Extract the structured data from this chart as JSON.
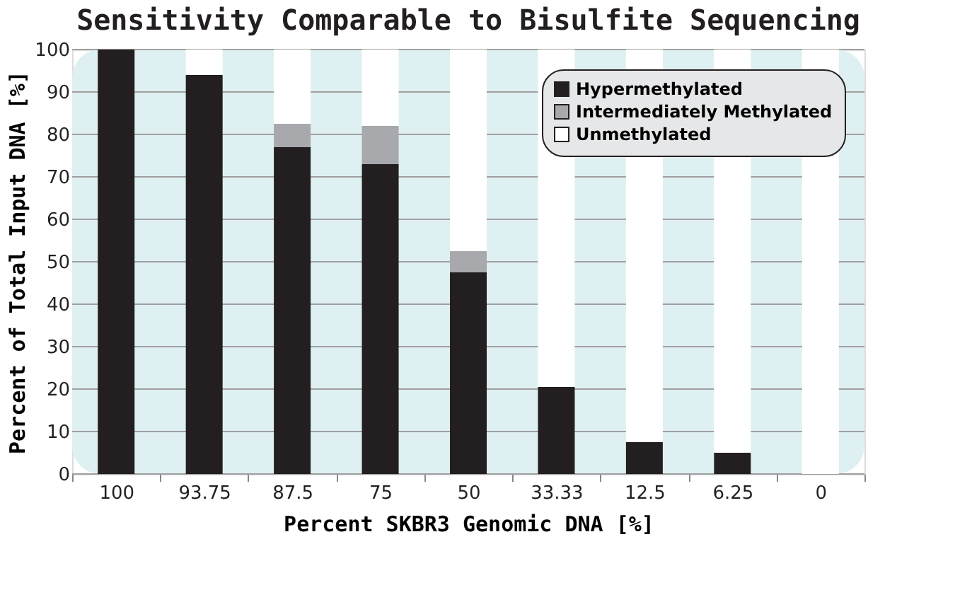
{
  "chart_data": {
    "type": "bar",
    "stacked": true,
    "title": "Sensitivity Comparable to Bisulfite Sequencing",
    "xlabel": "Percent SKBR3 Genomic DNA [%]",
    "ylabel": "Percent of Total Input DNA [%]",
    "categories": [
      "100",
      "93.75",
      "87.5",
      "75",
      "50",
      "33.33",
      "12.5",
      "6.25",
      "0"
    ],
    "series": [
      {
        "name": "Hypermethylated",
        "color": "#231f20",
        "values": [
          100,
          94,
          77,
          73,
          47.5,
          20.5,
          7.5,
          5,
          0
        ]
      },
      {
        "name": "Intermediately Methylated",
        "color": "#a7a9ac",
        "values": [
          0,
          0,
          5.5,
          9,
          5,
          0,
          0,
          0,
          0
        ]
      },
      {
        "name": "Unmethylated",
        "color": "#ffffff",
        "values": [
          0,
          6,
          17.5,
          18,
          47.5,
          79.5,
          92.5,
          95,
          100
        ]
      }
    ],
    "ylim": [
      0,
      100
    ],
    "yticks": [
      0,
      10,
      20,
      30,
      40,
      50,
      60,
      70,
      80,
      90,
      100
    ],
    "grid": "y",
    "legend": "top right"
  }
}
